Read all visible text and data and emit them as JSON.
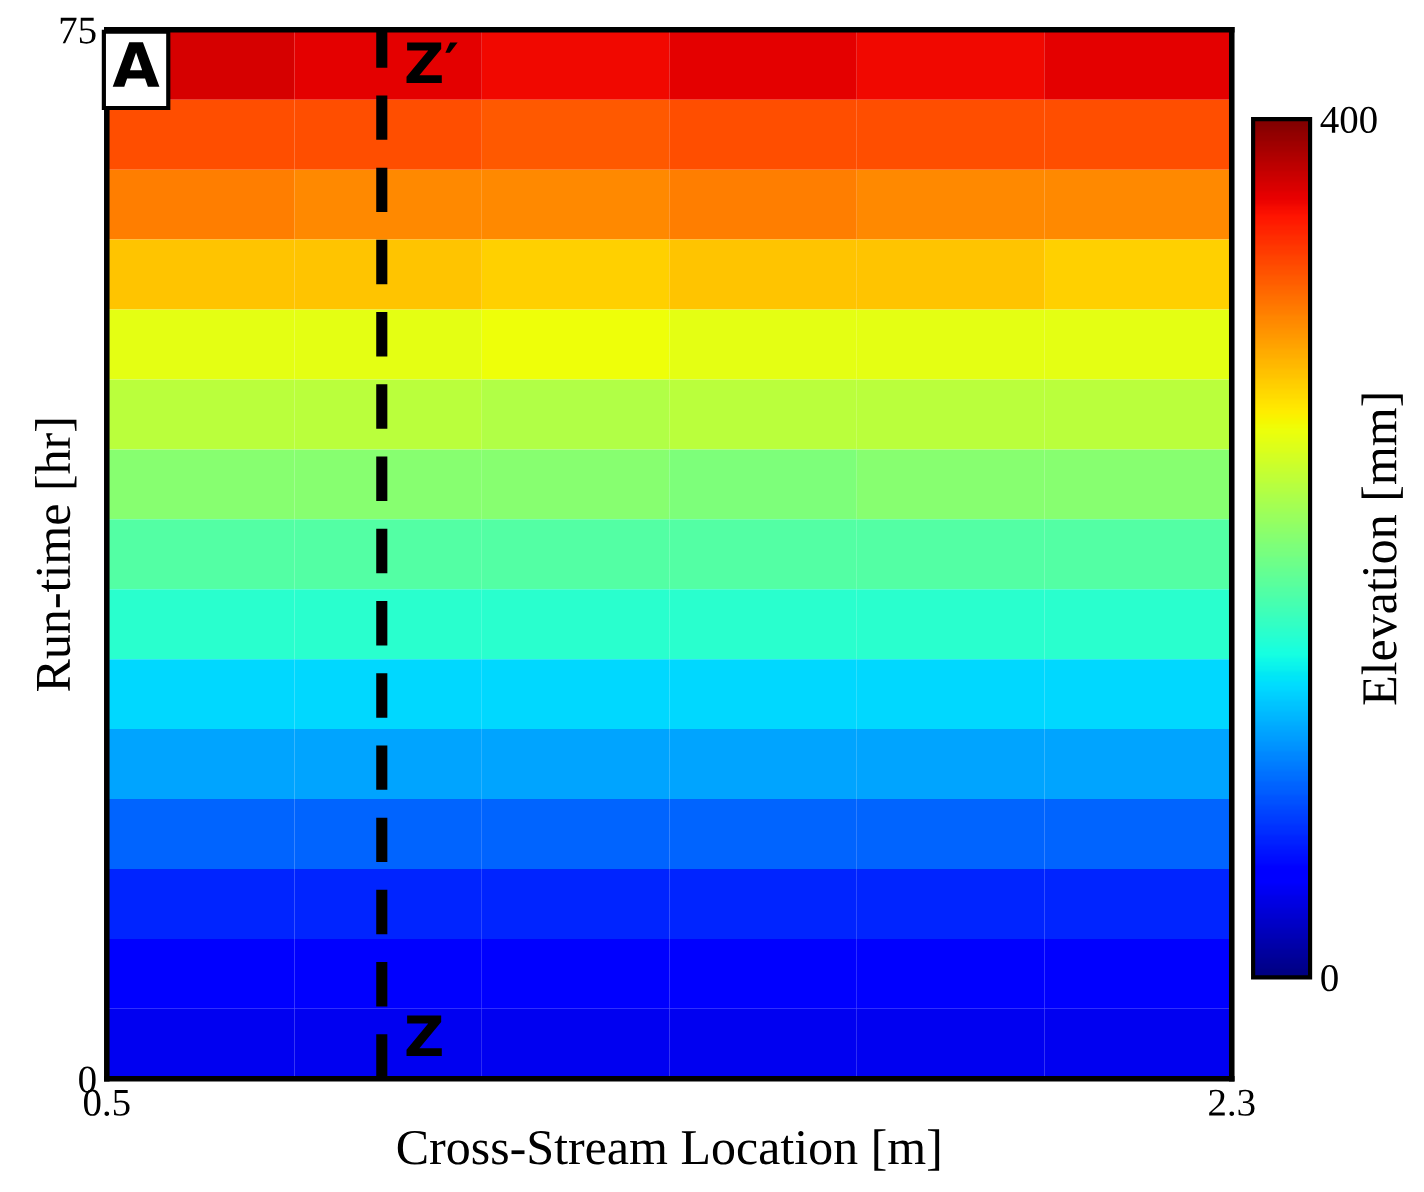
{
  "chart_data": {
    "type": "heatmap",
    "xlabel": "Cross-Stream Location [m]",
    "ylabel": "Run-time [hr]",
    "clabel": "Elevation [mm]",
    "x": [
      0.65,
      0.95,
      1.25,
      1.55,
      1.85,
      2.15
    ],
    "y": [
      72.5,
      67.5,
      62.5,
      57.5,
      52.5,
      47.5,
      42.5,
      37.5,
      32.5,
      27.5,
      22.5,
      17.5,
      12.5,
      7.5,
      2.5
    ],
    "cells": [
      [
        370,
        365,
        360,
        365,
        360,
        365
      ],
      [
        330,
        330,
        325,
        330,
        330,
        330
      ],
      [
        310,
        305,
        305,
        310,
        305,
        305
      ],
      [
        280,
        280,
        275,
        280,
        280,
        275
      ],
      [
        250,
        250,
        255,
        250,
        250,
        250
      ],
      [
        230,
        230,
        225,
        230,
        230,
        230
      ],
      [
        205,
        205,
        205,
        200,
        205,
        205
      ],
      [
        180,
        180,
        180,
        180,
        180,
        180
      ],
      [
        160,
        160,
        160,
        160,
        160,
        160
      ],
      [
        135,
        135,
        135,
        135,
        135,
        135
      ],
      [
        115,
        115,
        115,
        115,
        115,
        115
      ],
      [
        90,
        90,
        90,
        90,
        90,
        90
      ],
      [
        65,
        65,
        65,
        65,
        65,
        65
      ],
      [
        50,
        50,
        50,
        50,
        50,
        50
      ],
      [
        40,
        40,
        40,
        40,
        40,
        40
      ]
    ],
    "xlim": [
      0.5,
      2.3
    ],
    "xticks": [
      0.5,
      2.3
    ],
    "ylim": [
      0,
      75
    ],
    "yticks": [
      0,
      75
    ],
    "clim": [
      0,
      400
    ],
    "cticks": [
      0,
      400
    ],
    "ref_lines": [
      {
        "axis": "x",
        "value": 0.94,
        "label": null,
        "color": "#000000",
        "line_style": "dashed"
      }
    ],
    "annotations": [
      "A",
      "Z′",
      "Z"
    ]
  }
}
